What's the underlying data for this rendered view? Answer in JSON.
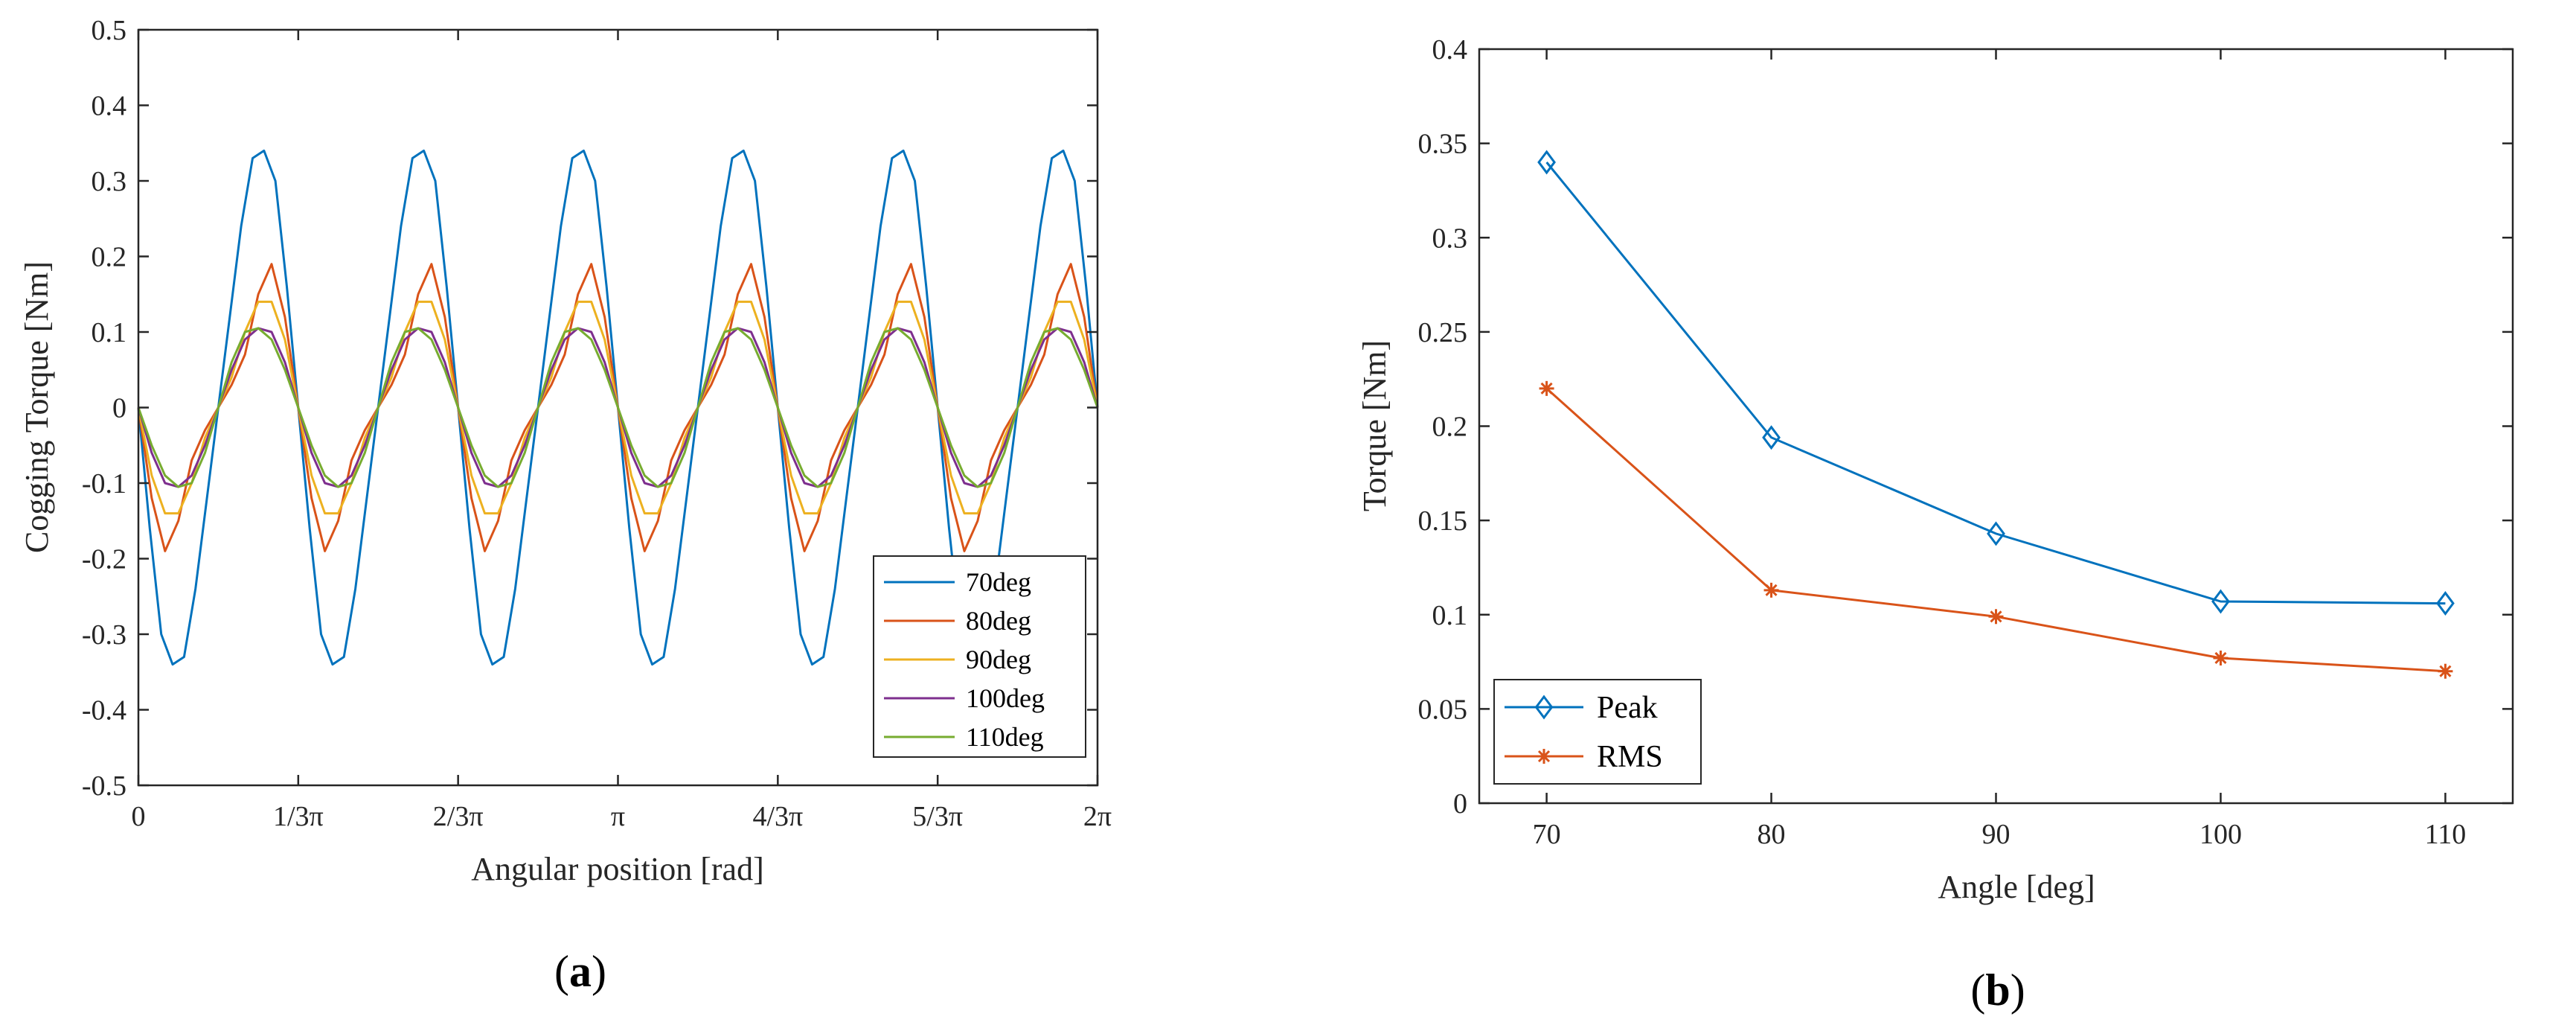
{
  "chart_data": [
    {
      "id": "a",
      "type": "line",
      "panel_label": "(a)",
      "title": "",
      "xlabel": "Angular position [rad]",
      "ylabel": "Cogging Torque [Nm]",
      "xlim": [
        0,
        6.2832
      ],
      "ylim": [
        -0.5,
        0.5
      ],
      "xticks": [
        0,
        1.0472,
        2.0944,
        3.1416,
        4.1888,
        5.236,
        6.2832
      ],
      "xtick_labels": [
        "0",
        "1/3π",
        "2/3π",
        "π",
        "4/3π",
        "5/3π",
        "2π"
      ],
      "yticks": [
        -0.5,
        -0.4,
        -0.3,
        -0.2,
        -0.1,
        0,
        0.1,
        0.2,
        0.3,
        0.4,
        0.5
      ],
      "ytick_labels": [
        "-0.5",
        "-0.4",
        "-0.3",
        "-0.2",
        "-0.1",
        "0",
        "0.1",
        "0.2",
        "0.3",
        "0.4",
        "0.5"
      ],
      "legend_position": "bottom-right",
      "periods": 6,
      "series": [
        {
          "name": "70deg",
          "color": "#0072BD",
          "shape": [
            0,
            -0.16,
            -0.3,
            -0.34,
            -0.33,
            -0.24,
            -0.12,
            0,
            0.12,
            0.24,
            0.33,
            0.34,
            0.3,
            0.16,
            0
          ]
        },
        {
          "name": "80deg",
          "color": "#D95319",
          "shape": [
            0,
            -0.12,
            -0.19,
            -0.15,
            -0.07,
            -0.03,
            0,
            0.03,
            0.07,
            0.15,
            0.19,
            0.12,
            0
          ]
        },
        {
          "name": "90deg",
          "color": "#EDB120",
          "shape": [
            0,
            -0.09,
            -0.14,
            -0.14,
            -0.1,
            -0.04,
            0,
            0.04,
            0.1,
            0.14,
            0.14,
            0.09,
            0
          ]
        },
        {
          "name": "100deg",
          "color": "#7E2F8E",
          "shape": [
            0,
            -0.06,
            -0.1,
            -0.105,
            -0.09,
            -0.05,
            0,
            0.05,
            0.09,
            0.105,
            0.1,
            0.06,
            0
          ]
        },
        {
          "name": "110deg",
          "color": "#77AC30",
          "shape": [
            0,
            -0.05,
            -0.09,
            -0.105,
            -0.1,
            -0.06,
            0,
            0.06,
            0.1,
            0.105,
            0.09,
            0.05,
            0
          ]
        }
      ]
    },
    {
      "id": "b",
      "type": "line",
      "panel_label": "(b)",
      "title": "",
      "xlabel": "Angle [deg]",
      "ylabel": "Torque [Nm]",
      "xlim": [
        67,
        113
      ],
      "ylim": [
        0,
        0.4
      ],
      "xticks": [
        70,
        80,
        90,
        100,
        110
      ],
      "xtick_labels": [
        "70",
        "80",
        "90",
        "100",
        "110"
      ],
      "yticks": [
        0,
        0.05,
        0.1,
        0.15,
        0.2,
        0.25,
        0.3,
        0.35,
        0.4
      ],
      "ytick_labels": [
        "0",
        "0.05",
        "0.1",
        "0.15",
        "0.2",
        "0.25",
        "0.3",
        "0.35",
        "0.4"
      ],
      "legend_position": "bottom-left",
      "x": [
        70,
        80,
        90,
        100,
        110
      ],
      "series": [
        {
          "name": "Peak",
          "color": "#0072BD",
          "marker": "diamond",
          "values": [
            0.34,
            0.194,
            0.143,
            0.107,
            0.106
          ]
        },
        {
          "name": "RMS",
          "color": "#D95319",
          "marker": "asterisk",
          "values": [
            0.22,
            0.113,
            0.099,
            0.077,
            0.07
          ]
        }
      ]
    }
  ]
}
